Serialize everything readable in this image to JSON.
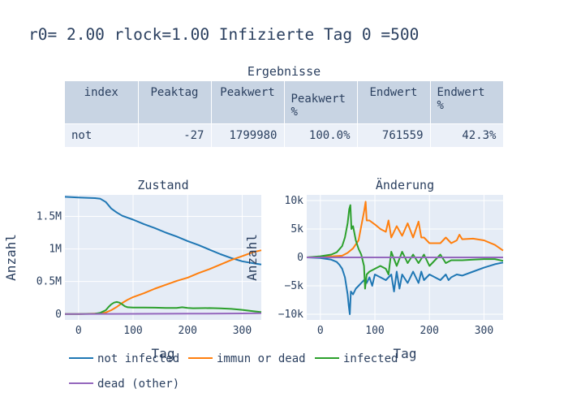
{
  "title": "r0= 2.00 rlock=1.00 Infizierte Tag 0 =500",
  "table": {
    "title": "Ergebnisse",
    "columns": [
      "index",
      "Peaktag",
      "Peakwert",
      "Peakwert %",
      "Endwert",
      "Endwert %"
    ],
    "rows": [
      [
        "not",
        "-27",
        "1799980",
        "100.0%",
        "761559",
        "42.3%"
      ]
    ]
  },
  "colors": {
    "not_infected": "#1f77b4",
    "immun_or_dead": "#ff7f0e",
    "infected": "#2ca02c",
    "dead_other": "#9467bd",
    "plot_bg": "#e5ecf6",
    "text": "#2a3f5f"
  },
  "chart_data": [
    {
      "type": "line",
      "title": "Zustand",
      "xlabel": "Tag",
      "ylabel": "Anzahl",
      "xlim": [
        -25,
        335
      ],
      "ylim": [
        -90000,
        1830000
      ],
      "xticks": [
        0,
        100,
        200,
        300
      ],
      "yticks": [
        0,
        500000,
        1000000,
        1500000
      ],
      "ytick_labels": [
        "0",
        "0.5M",
        "1M",
        "1.5M"
      ],
      "series": [
        {
          "name": "not infected",
          "key": "not_infected",
          "x": [
            -25,
            0,
            30,
            40,
            50,
            60,
            70,
            80,
            100,
            120,
            140,
            160,
            180,
            200,
            220,
            240,
            260,
            280,
            300,
            320,
            335
          ],
          "y": [
            1800000,
            1790000,
            1780000,
            1770000,
            1720000,
            1620000,
            1560000,
            1510000,
            1450000,
            1380000,
            1320000,
            1250000,
            1190000,
            1120000,
            1060000,
            990000,
            920000,
            860000,
            810000,
            780000,
            760000
          ]
        },
        {
          "name": "immun or dead",
          "key": "immun_or_dead",
          "x": [
            -25,
            0,
            40,
            50,
            60,
            70,
            80,
            90,
            100,
            120,
            140,
            160,
            180,
            200,
            220,
            240,
            260,
            280,
            300,
            320,
            335
          ],
          "y": [
            0,
            0,
            10000,
            25000,
            60000,
            110000,
            170000,
            220000,
            260000,
            320000,
            390000,
            450000,
            510000,
            560000,
            630000,
            690000,
            760000,
            830000,
            890000,
            950000,
            980000
          ]
        },
        {
          "name": "infected",
          "key": "infected",
          "x": [
            -25,
            0,
            30,
            40,
            50,
            55,
            60,
            65,
            70,
            75,
            80,
            85,
            90,
            100,
            120,
            140,
            160,
            180,
            190,
            200,
            210,
            240,
            260,
            280,
            300,
            320,
            335
          ],
          "y": [
            0,
            500,
            5000,
            20000,
            60000,
            110000,
            150000,
            175000,
            185000,
            175000,
            150000,
            120000,
            105000,
            100000,
            100000,
            98000,
            95000,
            95000,
            105000,
            95000,
            90000,
            92000,
            88000,
            80000,
            65000,
            45000,
            30000
          ]
        },
        {
          "name": "dead (other)",
          "key": "dead_other",
          "x": [
            -25,
            0,
            100,
            200,
            300,
            335
          ],
          "y": [
            0,
            0,
            3000,
            6000,
            10000,
            12000
          ]
        }
      ]
    },
    {
      "type": "line",
      "title": "Änderung",
      "xlabel": "Tag",
      "ylabel": "Anzahl",
      "xlim": [
        -25,
        335
      ],
      "ylim": [
        -11000,
        11000
      ],
      "xticks": [
        0,
        100,
        200,
        300
      ],
      "yticks": [
        -10000,
        -5000,
        0,
        5000,
        10000
      ],
      "ytick_labels": [
        "−10k",
        "−5k",
        "0",
        "5k",
        "10k"
      ],
      "series": [
        {
          "name": "not infected",
          "key": "not_infected",
          "x": [
            -25,
            0,
            20,
            30,
            35,
            40,
            45,
            50,
            52,
            54,
            56,
            60,
            65,
            70,
            75,
            80,
            85,
            90,
            95,
            100,
            110,
            120,
            130,
            135,
            140,
            145,
            150,
            160,
            170,
            180,
            185,
            190,
            200,
            210,
            220,
            230,
            235,
            240,
            250,
            260,
            280,
            300,
            320,
            335
          ],
          "y": [
            0,
            -100,
            -400,
            -800,
            -1300,
            -2000,
            -3500,
            -6500,
            -8500,
            -10000,
            -6000,
            -6500,
            -5500,
            -5000,
            -4500,
            -4000,
            -4500,
            -3500,
            -5000,
            -3000,
            -3500,
            -4000,
            -3000,
            -6000,
            -2500,
            -5500,
            -3000,
            -4500,
            -2500,
            -4500,
            -2500,
            -4000,
            -3000,
            -3500,
            -4000,
            -3000,
            -4000,
            -3500,
            -3000,
            -3200,
            -2500,
            -1800,
            -1200,
            -900
          ]
        },
        {
          "name": "immun or dead",
          "key": "immun_or_dead",
          "x": [
            -25,
            0,
            40,
            50,
            60,
            70,
            75,
            80,
            83,
            85,
            90,
            100,
            110,
            120,
            125,
            130,
            140,
            150,
            160,
            170,
            180,
            185,
            190,
            200,
            220,
            230,
            240,
            250,
            255,
            260,
            280,
            300,
            320,
            335
          ],
          "y": [
            0,
            50,
            300,
            800,
            1600,
            3000,
            5500,
            8000,
            9800,
            6500,
            6500,
            5800,
            5000,
            4500,
            6500,
            3500,
            5500,
            3800,
            6000,
            3500,
            6300,
            3500,
            3500,
            2500,
            2500,
            3500,
            2500,
            3000,
            4000,
            3200,
            3300,
            3000,
            2200,
            1200
          ]
        },
        {
          "name": "infected",
          "key": "infected",
          "x": [
            -25,
            0,
            20,
            30,
            40,
            45,
            50,
            53,
            55,
            57,
            60,
            65,
            70,
            75,
            80,
            82,
            85,
            90,
            100,
            110,
            120,
            125,
            130,
            140,
            150,
            160,
            170,
            180,
            190,
            200,
            210,
            220,
            230,
            240,
            260,
            280,
            300,
            320,
            335
          ],
          "y": [
            0,
            200,
            500,
            900,
            2000,
            3500,
            6000,
            8500,
            9200,
            5000,
            5500,
            3000,
            1500,
            500,
            -1500,
            -5500,
            -3000,
            -2500,
            -2000,
            -1500,
            -2000,
            -3000,
            1000,
            -1500,
            1000,
            -1000,
            500,
            -1000,
            500,
            -1500,
            -500,
            500,
            -1000,
            -500,
            -500,
            -400,
            -300,
            -300,
            -600
          ]
        },
        {
          "name": "dead (other)",
          "key": "dead_other",
          "x": [
            -25,
            335
          ],
          "y": [
            0,
            0
          ]
        }
      ]
    }
  ],
  "legend": [
    "not infected",
    "immun or dead",
    "infected",
    "dead (other)"
  ]
}
